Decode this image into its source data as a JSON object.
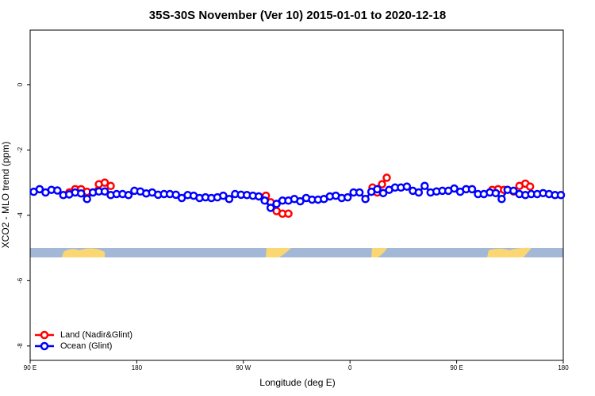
{
  "chart_data": {
    "type": "line",
    "title": "35S-30S November (Ver 10)   2015-01-01 to 2020-12-18",
    "xlabel": "Longitude (deg E)",
    "ylabel": "XCO2 - MLO trend (ppm)",
    "xlim": [
      90,
      540
    ],
    "xticks": [
      {
        "value": 90,
        "label": "90 E"
      },
      {
        "value": 180,
        "label": "180"
      },
      {
        "value": 270,
        "label": "90 W"
      },
      {
        "value": 360,
        "label": "0"
      },
      {
        "value": 450,
        "label": "90 E"
      },
      {
        "value": 540,
        "label": "180"
      }
    ],
    "ylim": [
      -8.44,
      1.67
    ],
    "yticks": [
      0,
      -2,
      -4,
      -6,
      -8
    ],
    "legend": "bottom-left",
    "series": [
      {
        "name": "Land (Nadir&Glint)",
        "color": "#ff0000",
        "x": [
          123,
          128,
          133,
          138,
          143,
          148,
          153,
          158,
          null,
          289,
          293,
          298,
          303,
          308,
          null,
          379,
          383,
          387,
          391,
          null,
          480,
          485,
          490,
          498,
          503,
          508,
          512
        ],
        "values": [
          -3.3,
          -3.2,
          -3.2,
          -3.28,
          -3.3,
          -3.05,
          -3.0,
          -3.1,
          null,
          -3.4,
          -3.6,
          -3.87,
          -3.95,
          -3.95,
          null,
          -3.15,
          -3.3,
          -3.05,
          -2.85,
          null,
          -3.22,
          -3.2,
          -3.22,
          -3.27,
          -3.1,
          -3.03,
          -3.12
        ]
      },
      {
        "name": "Ocean (Glint)",
        "color": "#0000ff",
        "x": [
          93,
          98,
          103,
          108,
          113,
          118,
          123,
          128,
          133,
          138,
          143,
          148,
          153,
          158,
          163,
          168,
          173,
          178,
          183,
          188,
          193,
          198,
          203,
          208,
          213,
          218,
          223,
          228,
          233,
          238,
          243,
          248,
          253,
          258,
          263,
          268,
          273,
          278,
          283,
          288,
          293,
          298,
          303,
          308,
          313,
          318,
          323,
          328,
          333,
          338,
          343,
          348,
          353,
          358,
          363,
          368,
          373,
          378,
          383,
          388,
          393,
          398,
          403,
          408,
          413,
          418,
          423,
          428,
          433,
          438,
          443,
          448,
          453,
          458,
          463,
          468,
          473,
          478,
          483,
          488,
          493,
          498,
          503,
          508,
          513,
          518,
          523,
          528,
          533,
          538
        ],
        "values": [
          -3.28,
          -3.2,
          -3.3,
          -3.22,
          -3.24,
          -3.38,
          -3.36,
          -3.3,
          -3.33,
          -3.5,
          -3.3,
          -3.27,
          -3.27,
          -3.38,
          -3.35,
          -3.35,
          -3.38,
          -3.25,
          -3.27,
          -3.33,
          -3.3,
          -3.37,
          -3.35,
          -3.35,
          -3.37,
          -3.47,
          -3.38,
          -3.4,
          -3.47,
          -3.45,
          -3.47,
          -3.45,
          -3.4,
          -3.5,
          -3.35,
          -3.37,
          -3.38,
          -3.4,
          -3.42,
          -3.55,
          -3.77,
          -3.65,
          -3.55,
          -3.55,
          -3.5,
          -3.57,
          -3.47,
          -3.52,
          -3.52,
          -3.5,
          -3.42,
          -3.4,
          -3.47,
          -3.45,
          -3.3,
          -3.3,
          -3.5,
          -3.28,
          -3.2,
          -3.32,
          -3.22,
          -3.15,
          -3.15,
          -3.12,
          -3.25,
          -3.3,
          -3.1,
          -3.3,
          -3.27,
          -3.25,
          -3.25,
          -3.18,
          -3.28,
          -3.2,
          -3.2,
          -3.35,
          -3.35,
          -3.3,
          -3.32,
          -3.5,
          -3.22,
          -3.25,
          -3.35,
          -3.38,
          -3.35,
          -3.35,
          -3.32,
          -3.35,
          -3.38,
          -3.38
        ]
      }
    ]
  }
}
